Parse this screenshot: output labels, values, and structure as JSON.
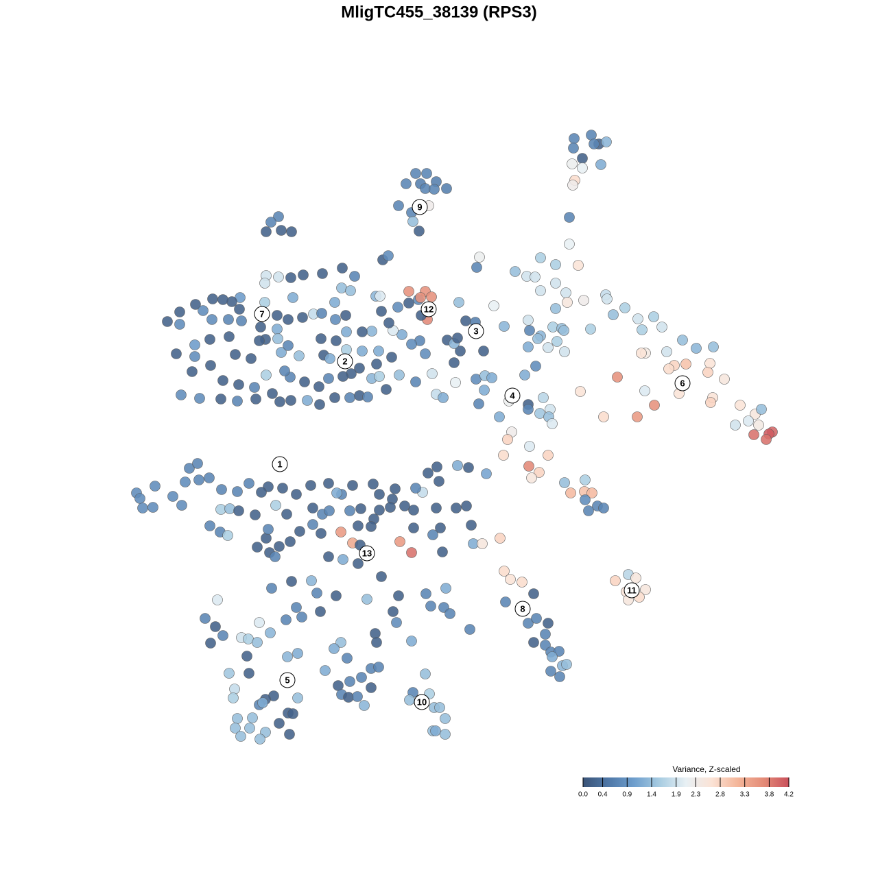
{
  "chart_data": {
    "type": "scatter",
    "title": "MligTC455_38139 (RPS3)",
    "xlim": [
      0,
      1280
    ],
    "ylim": [
      1280,
      0
    ],
    "x": [
      837,
      862,
      873,
      884,
      866,
      836,
      849,
      876,
      834,
      849,
      838,
      835,
      830,
      830,
      606,
      622,
      592,
      613,
      636,
      620,
      651,
      633,
      581,
      600,
      625,
      602,
      611,
      406,
      395,
      388,
      410,
      425,
      558,
      566,
      499,
      517,
      470,
      442,
      424,
      406,
      388,
      386,
      386,
      427,
      350,
      338,
      325,
      310,
      285,
      262,
      244,
      262,
      296,
      309,
      333,
      349,
      352,
      380,
      404,
      404,
      420,
      441,
      457,
      469,
      489,
      504,
      488,
      498,
      511,
      548,
      554,
      556,
      580,
      596,
      610,
      596,
      620,
      613,
      629,
      623,
      614,
      669,
      679,
      693,
      695,
      699,
      735,
      720,
      705,
      671,
      662,
      652,
      662,
      667,
      612,
      600,
      620,
      586,
      573,
      567,
      542,
      528,
      505,
      490,
      468,
      472,
      481,
      505,
      528,
      552,
      571,
      549,
      524,
      512,
      500,
      479,
      465,
      444,
      423,
      415,
      410,
      436,
      420,
      405,
      387,
      378,
      366,
      343,
      334,
      306,
      284,
      257,
      284,
      280,
      307,
      325,
      348,
      371,
      388,
      264,
      291,
      322,
      346,
      373,
      397,
      408,
      424,
      448,
      466,
      488,
      510,
      524,
      536,
      542,
      553,
      563,
      582,
      606,
      630,
      636,
      646,
      664,
      694,
      706,
      707,
      717,
      698,
      728,
      742,
      770,
      770,
      792,
      802,
      787,
      800,
      805,
      746,
      740,
      772,
      734,
      799,
      771,
      786,
      775,
      709,
      683,
      667,
      637,
      624,
      640,
      616,
      606,
      576,
      572,
      553,
      544,
      514,
      498,
      491,
      479,
      453,
      432,
      412,
      391,
      381,
      363,
      346,
      323,
      305,
      290,
      276,
      288,
      270,
      226,
      199,
      204,
      223,
      208,
      252,
      265,
      322,
      335,
      348,
      372,
      402,
      418,
      456,
      470,
      480,
      510,
      526,
      553,
      569,
      590,
      603,
      636,
      665,
      680,
      687,
      642,
      631,
      603,
      545,
      541,
      522,
      497,
      514,
      525,
      583,
      600,
      645,
      690,
      703,
      729,
      468,
      456,
      437,
      423,
      407,
      393,
      401,
      375,
      388,
      391,
      321,
      332,
      306,
      479,
      500,
      522,
      556,
      425,
      454,
      396,
      462,
      490,
      535,
      581,
      621,
      650,
      317,
      432,
      467,
      573,
      628,
      647,
      656,
      299,
      314,
      378,
      417,
      440,
      578,
      547,
      549,
      600,
      685,
      325,
      352,
      362,
      375,
      394,
      307,
      497,
      487,
      434,
      419,
      360,
      506,
      541,
      552,
      474,
      527,
      510,
      334,
      363,
      620,
      493,
      541,
      498,
      508,
      521,
      531,
      342,
      340,
      399,
      387,
      434,
      378,
      383,
      420,
      427,
      407,
      368,
      346,
      387,
      379,
      422,
      343,
      351,
      364,
      602,
      626,
      597,
      611,
      633,
      641,
      649,
      631,
      635,
      649,
      735,
      744,
      761,
      778,
      737,
      770,
      782,
      799,
      795,
      778,
      795,
      803,
      815,
      805,
      820,
      826,
      803,
      816,
      916,
      897,
      927,
      913,
      941,
      916,
      932,
      751,
      768,
      780,
      788,
      810,
      843,
      810,
      788,
      825,
      827,
      851,
      883,
      885,
      810,
      770,
      772,
      806,
      819,
      822,
      788,
      784,
      812,
      799,
      770,
      823,
      861,
      894,
      911,
      930,
      953,
      936,
      965,
      781,
      765,
      995,
      1015,
      1040,
      1035,
      1032,
      1056,
      972,
      941,
      935,
      983,
      1000,
      975,
      900,
      846,
      940,
      990,
      1039,
      1036,
      954,
      929,
      880,
      1079,
      1101,
      1110,
      1072,
      1091,
      1106,
      1126,
      1121,
      1117,
      1099,
      823,
      853,
      832,
      852,
      863,
      853,
      871,
      880,
      858
    ],
    "y": [
      202,
      197,
      210,
      207,
      210,
      216,
      231,
      240,
      239,
      245,
      263,
      270,
      317,
      356,
      253,
      253,
      268,
      268,
      265,
      275,
      275,
      276,
      300,
      310,
      300,
      323,
      337,
      316,
      324,
      338,
      336,
      338,
      379,
      373,
      391,
      403,
      399,
      401,
      405,
      404,
      402,
      413,
      441,
      434,
      434,
      440,
      437,
      436,
      444,
      455,
      469,
      473,
      453,
      466,
      466,
      451,
      468,
      477,
      460,
      480,
      466,
      463,
      458,
      457,
      466,
      460,
      441,
      420,
      424,
      432,
      432,
      454,
      448,
      442,
      437,
      425,
      425,
      434,
      433,
      466,
      460,
      441,
      468,
      470,
      390,
      375,
      476,
      446,
      512,
      512,
      529,
      496,
      501,
      493,
      497,
      502,
      516,
      488,
      482,
      471,
      483,
      484,
      484,
      497,
      494,
      518,
      523,
      510,
      512,
      512,
      521,
      531,
      537,
      545,
      549,
      552,
      564,
      557,
      550,
      541,
      514,
      519,
      504,
      494,
      495,
      497,
      523,
      517,
      491,
      495,
      503,
      516,
      520,
      542,
      533,
      555,
      561,
      565,
      547,
      576,
      581,
      582,
      585,
      582,
      574,
      586,
      584,
      584,
      590,
      580,
      580,
      577,
      579,
      552,
      549,
      568,
      547,
      557,
      545,
      575,
      580,
      558,
      553,
      569,
      548,
      551,
      589,
      608,
      585,
      590,
      597,
      580,
      597,
      603,
      608,
      618,
      630,
      641,
      651,
      664,
      664,
      680,
      689,
      697,
      691,
      682,
      679,
      681,
      690,
      702,
      718,
      712,
      713,
      728,
      721,
      706,
      708,
      721,
      719,
      705,
      708,
      721,
      712,
      710,
      718,
      705,
      717,
      714,
      697,
      700,
      683,
      676,
      703,
      709,
      719,
      727,
      740,
      741,
      724,
      737,
      743,
      742,
      745,
      751,
      737,
      750,
      741,
      750,
      745,
      745,
      742,
      744,
      740,
      738,
      744,
      741,
      741,
      738,
      766,
      770,
      780,
      770,
      757,
      768,
      767,
      776,
      792,
      795,
      790,
      806,
      805,
      793,
      793,
      785,
      778,
      765,
      775,
      790,
      797,
      806,
      812,
      798,
      785,
      772,
      776,
      781,
      767,
      812,
      816,
      822,
      841,
      848,
      847,
      858,
      865,
      869,
      874,
      869,
      866,
      858,
      875,
      886,
      892,
      892,
      884,
      886,
      895,
      902,
      914,
      908,
      904,
      900,
      908,
      924,
      937,
      935,
      918,
      927,
      930,
      932,
      937,
      923,
      938,
      937,
      946,
      953,
      958,
      957,
      960,
      975,
      973,
      978,
      988,
      994,
      982,
      982,
      983,
      1000,
      1003,
      1013,
      1017,
      1016,
      1029,
      1005,
      1018,
      1015,
      1020,
      1018,
      1028,
      1025,
      1040,
      1041,
      1055,
      1047,
      1048,
      1068,
      1078,
      1071,
      1062,
      1074,
      1062,
      1010,
      1012,
      1021,
      1024,
      1032,
      1032,
      1048,
      1066,
      1066,
      1071,
      833,
      845,
      849,
      866,
      878,
      909,
      902,
      909,
      925,
      937,
      941,
      951,
      950,
      958,
      971,
      969,
      979,
      987,
      838,
      847,
      843,
      863,
      860,
      875,
      871,
      396,
      403,
      404,
      376,
      386,
      387,
      413,
      424,
      427,
      441,
      438,
      430,
      436,
      450,
      467,
      482,
      477,
      479,
      482,
      490,
      494,
      498,
      507,
      506,
      513,
      480,
      459,
      449,
      465,
      462,
      481,
      477,
      534,
      547,
      496,
      508,
      506,
      530,
      543,
      553,
      513,
      515,
      515,
      533,
      531,
      538,
      550,
      571,
      570,
      574,
      580,
      587,
      591,
      608,
      608,
      591,
      604,
      597,
      620,
      614,
      620,
      630,
      633,
      641,
      634,
      704,
      700,
      719,
      717,
      719,
      729,
      738,
      741,
      745
    ],
    "values": [
      0.7,
      0.7,
      0.2,
      1.3,
      0.7,
      0.7,
      0.2,
      1.2,
      2.2,
      2.1,
      2.7,
      2.3,
      0.7,
      2.1,
      0.7,
      0.7,
      0.7,
      0.6,
      0.6,
      0.7,
      0.6,
      0.7,
      0.7,
      0.7,
      2.3,
      1.4,
      0.2,
      0.7,
      0.7,
      0.2,
      0.2,
      0.2,
      0.2,
      0.8,
      0.2,
      0.7,
      0.2,
      0.2,
      0.2,
      1.9,
      1.9,
      1.9,
      1.6,
      1.2,
      1.0,
      0.2,
      0.2,
      0.2,
      0.2,
      0.2,
      0.2,
      0.8,
      0.8,
      0.8,
      0.7,
      0.2,
      0.7,
      0.2,
      0.2,
      1.2,
      0.2,
      0.2,
      1.8,
      0.7,
      0.8,
      0.2,
      1.2,
      1.4,
      1.4,
      1.3,
      2.0,
      0.2,
      0.8,
      0.2,
      0.8,
      3.6,
      3.6,
      3.6,
      3.6,
      3.7,
      0.2,
      1.4,
      0.2,
      0.6,
      0.7,
      2.2,
      1.3,
      2.1,
      0.2,
      0.2,
      0.2,
      0.2,
      1.3,
      0.2,
      0.7,
      0.8,
      0.8,
      1.2,
      2.0,
      0.2,
      1.3,
      0.2,
      1.2,
      0.2,
      0.2,
      0.2,
      1.2,
      1.6,
      1.2,
      1.2,
      0.2,
      0.2,
      0.2,
      0.2,
      0.2,
      0.7,
      0.2,
      0.2,
      0.7,
      0.7,
      1.2,
      1.4,
      0.7,
      1.4,
      0.2,
      0.2,
      0.2,
      0.2,
      0.2,
      0.2,
      1.0,
      0.2,
      0.8,
      0.2,
      0.2,
      0.2,
      0.2,
      0.7,
      1.6,
      0.8,
      0.8,
      0.2,
      0.7,
      0.2,
      0.2,
      0.2,
      0.2,
      1.2,
      0.2,
      0.2,
      0.7,
      0.2,
      0.7,
      1.3,
      1.6,
      0.2,
      1.4,
      0.7,
      1.9,
      1.8,
      1.2,
      2.1,
      0.8,
      1.2,
      1.4,
      1.2,
      0.7,
      1.2,
      2.2,
      0.2,
      0.7,
      1.7,
      1.9,
      1.5,
      1.4,
      2.0,
      2.3,
      2.8,
      2.0,
      2.7,
      2.8,
      3.7,
      2.8,
      2.5,
      1.1,
      0.2,
      1.2,
      0.2,
      0.2,
      0.2,
      1.8,
      0.7,
      0.2,
      0.2,
      0.2,
      0.2,
      0.2,
      0.7,
      1.2,
      0.2,
      0.2,
      0.2,
      0.2,
      0.2,
      0.2,
      0.7,
      0.7,
      0.7,
      0.7,
      0.7,
      0.7,
      0.7,
      0.8,
      0.8,
      0.8,
      0.8,
      0.8,
      0.8,
      0.8,
      0.8,
      1.6,
      1.4,
      0.2,
      0.2,
      1.6,
      0.2,
      0.2,
      0.7,
      0.7,
      0.7,
      0.2,
      0.2,
      0.2,
      0.2,
      0.2,
      0.2,
      0.2,
      0.2,
      0.2,
      0.2,
      0.7,
      0.2,
      0.2,
      0.2,
      0.2,
      3.5,
      3.3,
      0.2,
      3.5,
      3.9,
      0.2,
      1.2,
      2.5,
      2.8,
      0.2,
      0.7,
      0.2,
      0.2,
      0.2,
      0.2,
      0.7,
      0.2,
      0.2,
      0.7,
      0.7,
      1.6,
      0.7,
      0.2,
      1.2,
      0.2,
      0.2,
      0.2,
      1.3,
      0.7,
      0.7,
      0.2,
      1.4,
      0.2,
      0.7,
      1.2,
      2.0,
      0.7,
      0.2,
      0.2,
      0.7,
      0.7,
      0.7,
      0.7,
      0.2,
      2.0,
      0.7,
      0.7,
      0.8,
      0.2,
      0.2,
      1.2,
      0.7,
      0.7,
      1.9,
      1.6,
      1.4,
      1.3,
      0.2,
      1.4,
      1.2,
      1.2,
      1.3,
      0.2,
      0.7,
      0.7,
      0.7,
      1.2,
      0.7,
      0.7,
      1.5,
      0.2,
      1.4,
      0.2,
      0.2,
      0.7,
      0.2,
      0.7,
      1.3,
      1.8,
      1.6,
      0.2,
      0.2,
      1.4,
      0.7,
      1.2,
      0.2,
      0.2,
      0.2,
      1.4,
      1.4,
      1.4,
      1.4,
      0.2,
      1.4,
      1.4,
      1.4,
      0.7,
      1.6,
      1.4,
      1.4,
      1.4,
      1.4,
      1.4,
      1.4,
      1.2,
      1.4,
      2.7,
      2.6,
      2.7,
      0.2,
      0.7,
      0.7,
      0.7,
      0.2,
      0.7,
      0.2,
      0.7,
      0.7,
      0.7,
      1.2,
      1.3,
      1.4,
      0.7,
      0.7,
      1.7,
      2.8,
      2.5,
      2.6,
      2.5,
      2.5,
      2.7,
      1.4,
      1.9,
      1.9,
      1.6,
      1.6,
      2.6,
      1.9,
      1.9,
      1.9,
      2.5,
      2.3,
      1.8,
      1.9,
      1.4,
      1.9,
      0.7,
      1.6,
      1.4,
      1.4,
      1.3,
      1.4,
      1.6,
      1.9,
      1.2,
      1.9,
      1.6,
      1.4,
      1.6,
      1.9,
      1.6,
      1.6,
      1.9,
      0.8,
      1.2,
      1.4,
      1.3,
      1.4,
      2.6,
      2.8,
      2.5,
      1.9,
      2.4,
      2.6,
      2.8,
      3.0,
      2.7,
      3.6,
      2.6,
      2.0,
      2.6,
      2.6,
      2.8,
      3.6,
      3.5,
      2.7,
      2.6,
      2.5,
      1.4,
      1.9,
      2.0,
      2.4,
      4.0,
      4.1,
      3.9,
      3.9,
      1.4,
      1.6,
      3.1,
      3.0,
      3.1,
      0.8,
      0.7,
      0.7,
      0.7
    ],
    "annotations": [
      {
        "text": "1",
        "x": 408,
        "y": 677
      },
      {
        "text": "2",
        "x": 503,
        "y": 527
      },
      {
        "text": "3",
        "x": 694,
        "y": 483
      },
      {
        "text": "4",
        "x": 747,
        "y": 577
      },
      {
        "text": "5",
        "x": 419,
        "y": 992
      },
      {
        "text": "6",
        "x": 995,
        "y": 559
      },
      {
        "text": "7",
        "x": 382,
        "y": 458
      },
      {
        "text": "8",
        "x": 762,
        "y": 888
      },
      {
        "text": "9",
        "x": 612,
        "y": 302
      },
      {
        "text": "10",
        "x": 615,
        "y": 1024
      },
      {
        "text": "11",
        "x": 921,
        "y": 861
      },
      {
        "text": "12",
        "x": 625,
        "y": 451
      },
      {
        "text": "13",
        "x": 535,
        "y": 807
      }
    ],
    "colorbar": {
      "title": "Variance, Z-scaled",
      "clim": [
        0,
        4.2
      ],
      "ticks": [
        {
          "value": 0,
          "label": "0.0"
        },
        0.4,
        0.9,
        1.4,
        1.9,
        2.3,
        2.8,
        3.3,
        3.8,
        4.2
      ],
      "colors": [
        "#3b5477",
        "#4f78a8",
        "#6f9fcd",
        "#a9cde2",
        "#e8f0f4",
        "#fbe3d6",
        "#f4b69a",
        "#e48c78",
        "#c9505b"
      ]
    }
  }
}
